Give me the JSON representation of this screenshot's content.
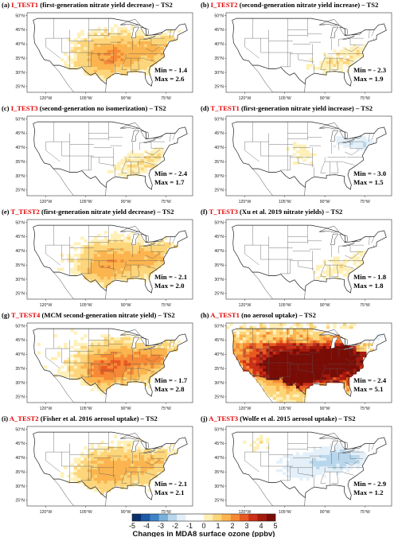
{
  "panels": [
    {
      "label": "(a)",
      "code": "I_TEST1",
      "desc": "(first-generation nitrate yield decrease) – TS2",
      "min": "Min = - 1.4",
      "max": "Max = 2.6",
      "pattern": "inc-central",
      "strength": 0.45
    },
    {
      "label": "(b)",
      "code": "I_TEST2",
      "desc": "(second-generation nitrate yield increase) – TS2",
      "min": "Min = - 2.3",
      "max": "Max = 1.9",
      "pattern": "mixed-light",
      "strength": 0.3
    },
    {
      "label": "(c)",
      "code": "I_TEST3",
      "desc": "(second-generation no isomerization) – TS2",
      "min": "Min = - 2.4",
      "max": "Max = 1.7",
      "pattern": "mixed-light",
      "strength": 0.32
    },
    {
      "label": "(d)",
      "code": "T_TEST1",
      "desc": "(first-generation nitrate yield increase) – TS2",
      "min": "Min = - 3.0",
      "max": "Max = 1.5",
      "pattern": "dec-east",
      "strength": 0.35
    },
    {
      "label": "(e)",
      "code": "T_TEST2",
      "desc": "(first-generation nitrate yield decrease) – TS2",
      "min": "Min = - 2.1",
      "max": "Max = 2.0",
      "pattern": "inc-central",
      "strength": 0.42
    },
    {
      "label": "(f)",
      "code": "T_TEST3",
      "desc": "(Xu et al. 2019 nitrate yields) – TS2",
      "min": "Min = - 1.8",
      "max": "Max = 1.8",
      "pattern": "mixed-light",
      "strength": 0.25
    },
    {
      "label": "(g)",
      "code": "T_TEST4",
      "desc": "(MCM second-generation nitrate yield) – TS2",
      "min": "Min = - 1.7",
      "max": "Max = 2.8",
      "pattern": "inc-central",
      "strength": 0.6
    },
    {
      "label": "(h)",
      "code": "A_TEST1",
      "desc": "(no aerosol uptake) – TS2",
      "min": "Min = - 2.4",
      "max": "Max = 5.1",
      "pattern": "inc-strong",
      "strength": 1.0
    },
    {
      "label": "(i)",
      "code": "A_TEST2",
      "desc": "(Fisher et al. 2016 aerosol uptake) – TS2",
      "min": "Min = - 2.1",
      "max": "Max = 2.1",
      "pattern": "inc-central",
      "strength": 0.4
    },
    {
      "label": "(j)",
      "code": "A_TEST3",
      "desc": "(Wolfe et al. 2015 aerosol uptake) – TS2",
      "min": "Min = - 2.9",
      "max": "Max = 1.2",
      "pattern": "dec-broad",
      "strength": 0.45
    }
  ],
  "axes": {
    "lat_labels": [
      "50°N",
      "45°N",
      "40°N",
      "35°N",
      "30°N",
      "25°N"
    ],
    "lon_labels": [
      "120°W",
      "105°W",
      "90°W",
      "75°W"
    ]
  },
  "colorbar": {
    "ticks": [
      "-5",
      "-4",
      "-3",
      "-2",
      "-1",
      "0",
      "1",
      "2",
      "3",
      "4",
      "5"
    ],
    "label": "Changes in MDA8 surface ozone (ppbv)",
    "colors": [
      "#08306b",
      "#1c5aa6",
      "#3f83c4",
      "#7ab1da",
      "#b8d6ec",
      "#e4f0f9",
      "#ffffff",
      "#ffffff",
      "#fff0b8",
      "#fdd57a",
      "#fbb44e",
      "#f68936",
      "#e85a22",
      "#cd2f16",
      "#a51a0d",
      "#7a0c06"
    ]
  }
}
